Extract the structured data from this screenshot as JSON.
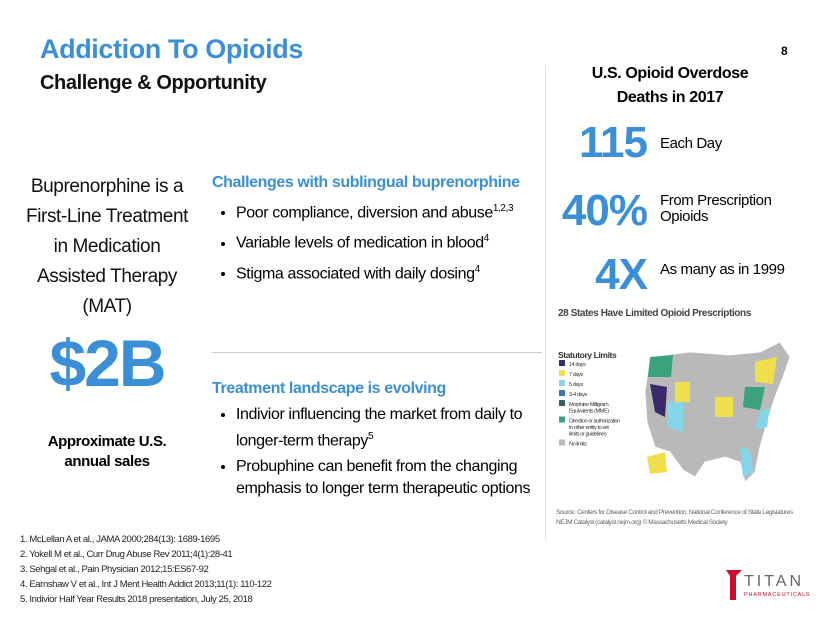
{
  "header": {
    "title": "Addiction To Opioids",
    "subtitle": "Challenge & Opportunity",
    "page_number": "8"
  },
  "left": {
    "statement": [
      "Buprenorphine  is a",
      "First-Line Treatment",
      "in Medication",
      "Assisted Therapy",
      "(MAT)"
    ],
    "figure": "$2B",
    "caption": [
      "Approximate U.S.",
      "annual sales"
    ]
  },
  "sections": [
    {
      "heading": "Challenges with sublingual buprenorphine",
      "bullets": [
        {
          "text": "Poor compliance, diversion and abuse",
          "sup": "1,2,3"
        },
        {
          "text": "Variable levels of medication in blood",
          "sup": "4"
        },
        {
          "text": "Stigma associated with daily dosing",
          "sup": "4"
        }
      ]
    },
    {
      "heading": "Treatment landscape is evolving",
      "bullets": [
        {
          "text": "Indivior influencing the market from daily to longer-term therapy",
          "sup": "5"
        },
        {
          "text": "Probuphine can benefit from the changing emphasis to longer term therapeutic options"
        }
      ]
    }
  ],
  "right": {
    "heading": [
      "U.S. Opioid Overdose",
      "Deaths in 2017"
    ],
    "stats": [
      {
        "value": "115",
        "label": "Each Day"
      },
      {
        "value": "40%",
        "label": "From Prescription Opioids"
      },
      {
        "value": "4X",
        "label": "As many  as in 1999"
      }
    ],
    "map": {
      "title": "28 States Have Limited Opioid Prescriptions",
      "legend_title": "Statutory Limits",
      "legend": [
        {
          "label": "14 days",
          "color": "#3b2a6b"
        },
        {
          "label": "7 days",
          "color": "#f0de4a"
        },
        {
          "label": "5 days",
          "color": "#86d6ea"
        },
        {
          "label": "3-4 days",
          "color": "#3f76b0"
        },
        {
          "label": "Morphine Milligram Equivalents (MME)",
          "color": "#35606a"
        },
        {
          "label": "Direction or authorization to other entity to set limits or guidelines",
          "color": "#3aa37c"
        },
        {
          "label": "No limits",
          "color": "#b9b9b9"
        }
      ],
      "source": [
        "Source: Centers for Disease Control and Prevention; National Conference of State Legislatures",
        "NEJM Catalyst (catalyst.nejm.org) © Massachusetts Medical Society"
      ]
    }
  },
  "footnotes": [
    "1.   McLellan A et al., JAMA 2000;284(13): 1689-1695",
    "2.   Yokell M et al., Curr Drug Abuse Rev 2011;4(1):28-41",
    "3.   Sehgal et al., Pain Physician 2012;15:ES67-92",
    "4.   Earnshaw V et al., Int J Ment Health Addict 2013;11(1): 110-122",
    "5.   Indivior Half Year Results 2018 presentation, July 25, 2018"
  ],
  "logo": {
    "name": "TITAN",
    "tagline": "PHARMACEUTICALS"
  }
}
